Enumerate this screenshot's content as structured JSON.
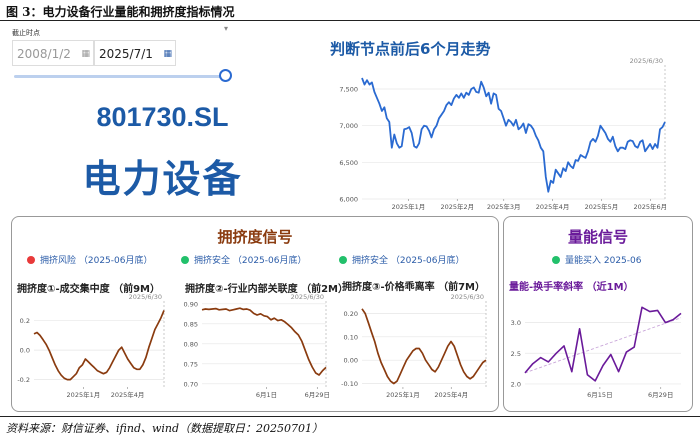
{
  "figure_title": "图 3：电力设备行业量能和拥挤度指标情况",
  "controls": {
    "date_label": "截止时点",
    "start_date": "2008/1/2",
    "end_date": "2025/7/1",
    "calendar_icon": "calendar-icon",
    "collapse_icon": "chevron-down-icon",
    "range_slider_position": 1.0
  },
  "industry": {
    "code": "801730.SL",
    "name": "电力设备"
  },
  "crowding_panel": {
    "title": "拥挤度信号",
    "signals": [
      {
        "text": "拥挤风险 （2025-06月底）",
        "color": "#e83a3a"
      },
      {
        "text": "拥挤安全 （2025-06月底）",
        "color": "#22c06b"
      },
      {
        "text": "拥挤安全 （2025-06月底）",
        "color": "#22c06b"
      }
    ]
  },
  "volume_panel": {
    "title": "量能信号",
    "signal": {
      "text": "量能买入 2025-06",
      "color": "#22c06b"
    }
  },
  "source_note": "资料来源：财信证券、ifind、wind（数据提取日：20250701）",
  "colors": {
    "accent": "#1c5aa6",
    "brown": "#8a3b0f",
    "purple": "#6a1a9a"
  },
  "chart_data": [
    {
      "id": "main",
      "type": "line",
      "title": "判断节点前后6个月走势",
      "annotation": "2025/6/30",
      "color": "#2a6ad1",
      "ylim": [
        6000,
        7800
      ],
      "yticks": [
        6000,
        6500,
        7000,
        7500
      ],
      "ytick_labels": [
        "6,000",
        "6,500",
        "7,000",
        "7,500"
      ],
      "xlim": [
        -1,
        123
      ],
      "xticks": [
        18,
        38,
        57,
        77,
        97,
        117
      ],
      "xtick_labels": [
        "2025年1月",
        "2025年2月",
        "2025年3月",
        "2025年4月",
        "2025年5月",
        "2025年6月"
      ],
      "y": [
        7650,
        7560,
        7620,
        7560,
        7590,
        7460,
        7380,
        7300,
        7200,
        7250,
        7100,
        7050,
        6700,
        6880,
        6760,
        6700,
        6720,
        6950,
        6960,
        6980,
        6900,
        6720,
        6700,
        6760,
        6950,
        7000,
        6990,
        6930,
        6840,
        6950,
        7000,
        7100,
        7150,
        7200,
        7280,
        7320,
        7280,
        7370,
        7420,
        7380,
        7440,
        7380,
        7450,
        7420,
        7500,
        7520,
        7460,
        7450,
        7600,
        7520,
        7400,
        7450,
        7300,
        7440,
        7420,
        7230,
        7200,
        7100,
        7000,
        7080,
        7050,
        7000,
        7080,
        6950,
        6980,
        7030,
        6900,
        7020,
        7000,
        6950,
        6860,
        6800,
        6700,
        6650,
        6300,
        6100,
        6250,
        6220,
        6400,
        6350,
        6300,
        6420,
        6380,
        6500,
        6450,
        6420,
        6530,
        6520,
        6600,
        6580,
        6560,
        6650,
        6780,
        6820,
        6780,
        6860,
        7000,
        6950,
        6900,
        6820,
        6780,
        6850,
        6720,
        6650,
        6700,
        6700,
        6680,
        6780,
        6800,
        6790,
        6720,
        6700,
        6780,
        6800,
        6650,
        6700,
        6750,
        6680,
        6750,
        6700,
        6950,
        6980,
        7050
      ]
    },
    {
      "id": "crowd1",
      "type": "line",
      "title": "拥挤度①-成交集中度 （前9M）",
      "annotation": "2025/6/30",
      "color": "#8a3b0f",
      "ylim": [
        -0.25,
        0.32
      ],
      "yticks": [
        -0.2,
        0.0,
        0.2
      ],
      "ytick_labels": [
        "-0.2",
        "0.0",
        "0.2"
      ],
      "xlim": [
        0,
        100
      ],
      "xticks": [
        38,
        72
      ],
      "xtick_labels": [
        "2025年1月",
        "2025年4月"
      ],
      "y": [
        0.11,
        0.12,
        0.1,
        0.07,
        0.04,
        0.0,
        -0.05,
        -0.1,
        -0.14,
        -0.17,
        -0.19,
        -0.2,
        -0.2,
        -0.18,
        -0.16,
        -0.12,
        -0.1,
        -0.06,
        -0.08,
        -0.1,
        -0.12,
        -0.14,
        -0.15,
        -0.16,
        -0.15,
        -0.12,
        -0.08,
        -0.04,
        0.0,
        0.02,
        -0.02,
        -0.06,
        -0.09,
        -0.12,
        -0.13,
        -0.13,
        -0.1,
        -0.05,
        0.02,
        0.08,
        0.14,
        0.18,
        0.22,
        0.27
      ]
    },
    {
      "id": "crowd2",
      "type": "line",
      "title": "拥挤度②-行业内部关联度 （前2M）",
      "annotation": "2025/6/30",
      "color": "#8a3b0f",
      "ylim": [
        0.692,
        0.902
      ],
      "yticks": [
        0.7,
        0.75,
        0.8,
        0.85,
        0.9
      ],
      "ytick_labels": [
        "0.70",
        "0.75",
        "0.80",
        "0.85",
        "0.90"
      ],
      "xlim": [
        0,
        100
      ],
      "xticks": [
        52,
        93
      ],
      "xtick_labels": [
        "6月1日",
        "6月29日"
      ],
      "y": [
        0.885,
        0.887,
        0.886,
        0.887,
        0.888,
        0.885,
        0.886,
        0.887,
        0.883,
        0.885,
        0.887,
        0.889,
        0.886,
        0.887,
        0.884,
        0.876,
        0.872,
        0.875,
        0.87,
        0.868,
        0.86,
        0.864,
        0.858,
        0.86,
        0.855,
        0.848,
        0.84,
        0.83,
        0.822,
        0.806,
        0.783,
        0.76,
        0.742,
        0.727,
        0.722,
        0.733,
        0.741
      ]
    },
    {
      "id": "crowd3",
      "type": "line",
      "title": "拥挤度③-价格乖离率 （前7M）",
      "annotation": "2025/6/30",
      "color": "#8a3b0f",
      "ylim": [
        -0.115,
        0.245
      ],
      "yticks": [
        -0.1,
        0.0,
        0.1,
        0.2
      ],
      "ytick_labels": [
        "-0.10",
        "0.00",
        "0.10",
        "0.20"
      ],
      "xlim": [
        0,
        100
      ],
      "xticks": [
        33,
        72
      ],
      "xtick_labels": [
        "2025年1月",
        "2025年4月"
      ],
      "y": [
        0.22,
        0.2,
        0.16,
        0.12,
        0.08,
        0.03,
        -0.01,
        -0.04,
        -0.07,
        -0.09,
        -0.1,
        -0.09,
        -0.06,
        -0.03,
        0.0,
        0.02,
        0.04,
        0.05,
        0.05,
        0.03,
        0.0,
        -0.02,
        -0.04,
        -0.05,
        -0.03,
        0.0,
        0.03,
        0.06,
        0.08,
        0.06,
        0.02,
        -0.02,
        -0.05,
        -0.07,
        -0.08,
        -0.07,
        -0.05,
        -0.03,
        -0.01,
        0.0
      ]
    },
    {
      "id": "volume",
      "type": "line",
      "title": "量能-换手率斜率 （近1M）",
      "annotation": "",
      "color": "#6a1a9a",
      "ylim": [
        1.95,
        3.32
      ],
      "yticks": [
        2.0,
        2.5,
        3.0
      ],
      "ytick_labels": [
        "2.0",
        "2.5",
        "3.0"
      ],
      "xlim": [
        0,
        100
      ],
      "xticks": [
        48,
        87
      ],
      "xtick_labels": [
        "6月15日",
        "6月29日"
      ],
      "trend": [
        2.18,
        3.08
      ],
      "y": [
        2.18,
        2.33,
        2.43,
        2.36,
        2.5,
        2.62,
        2.2,
        2.9,
        2.15,
        2.05,
        2.3,
        2.48,
        2.2,
        2.52,
        2.6,
        3.25,
        3.18,
        3.2,
        3.0,
        3.05,
        3.15
      ]
    }
  ]
}
